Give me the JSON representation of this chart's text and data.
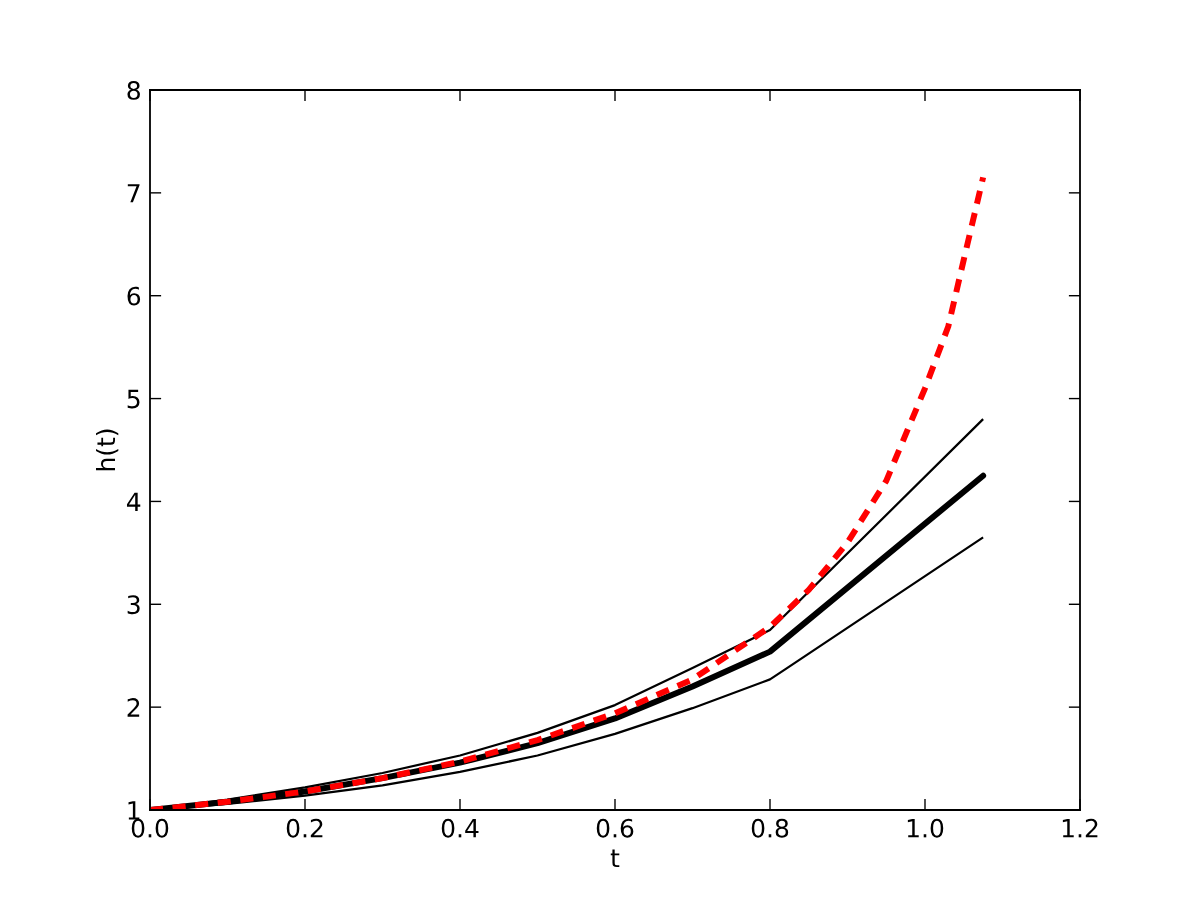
{
  "chart_data": {
    "type": "line",
    "xlabel": "t",
    "ylabel": "h(t)",
    "xlim": [
      0,
      1.2
    ],
    "ylim": [
      1,
      8
    ],
    "xticks": [
      {
        "value": 0,
        "label": "0.0"
      },
      0.2,
      0.4,
      0.6,
      0.8,
      {
        "value": 1,
        "label": "1.0"
      },
      1.2
    ],
    "yticks": [
      1,
      2,
      3,
      4,
      5,
      6,
      7,
      8
    ],
    "series": [
      {
        "color": "#000000",
        "line_style": "solid",
        "x": [
          0,
          0.1,
          0.2,
          0.3,
          0.4,
          0.5,
          0.6,
          0.7,
          0.8,
          1.075
        ],
        "values": [
          1.0,
          1.1,
          1.22,
          1.36,
          1.53,
          1.75,
          2.02,
          2.38,
          2.75,
          4.8
        ]
      },
      {
        "color": "#000000",
        "line_style": "solid",
        "x": [
          0,
          0.1,
          0.2,
          0.3,
          0.4,
          0.5,
          0.6,
          0.7,
          0.8,
          1.075
        ],
        "values": [
          1.0,
          1.08,
          1.18,
          1.31,
          1.46,
          1.65,
          1.89,
          2.2,
          2.54,
          4.25
        ]
      },
      {
        "color": "#000000",
        "line_style": "solid",
        "x": [
          0,
          0.1,
          0.2,
          0.3,
          0.4,
          0.5,
          0.6,
          0.7,
          0.8,
          0.82,
          1.075
        ],
        "values": [
          1.0,
          1.06,
          1.14,
          1.24,
          1.37,
          1.53,
          1.74,
          1.99,
          2.27,
          2.37,
          3.65
        ]
      },
      {
        "color": "#ff0000",
        "line_style": "dashed",
        "x": [
          0,
          0.1,
          0.2,
          0.3,
          0.4,
          0.5,
          0.6,
          0.7,
          0.8,
          0.85,
          0.9,
          0.95,
          1.0,
          1.03,
          1.05,
          1.075
        ],
        "values": [
          1.0,
          1.08,
          1.18,
          1.31,
          1.47,
          1.68,
          1.94,
          2.27,
          2.78,
          3.14,
          3.6,
          4.2,
          5.1,
          5.7,
          6.35,
          7.15
        ]
      }
    ]
  }
}
